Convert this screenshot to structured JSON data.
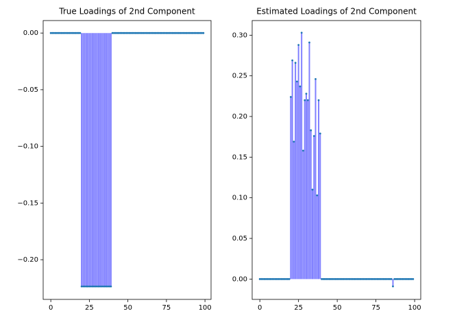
{
  "chart_data": [
    {
      "type": "stem",
      "title": "True Loadings of 2nd Component",
      "x": [
        0,
        1,
        2,
        3,
        4,
        5,
        6,
        7,
        8,
        9,
        10,
        11,
        12,
        13,
        14,
        15,
        16,
        17,
        18,
        19,
        20,
        21,
        22,
        23,
        24,
        25,
        26,
        27,
        28,
        29,
        30,
        31,
        32,
        33,
        34,
        35,
        36,
        37,
        38,
        39,
        40,
        41,
        42,
        43,
        44,
        45,
        46,
        47,
        48,
        49,
        50,
        51,
        52,
        53,
        54,
        55,
        56,
        57,
        58,
        59,
        60,
        61,
        62,
        63,
        64,
        65,
        66,
        67,
        68,
        69,
        70,
        71,
        72,
        73,
        74,
        75,
        76,
        77,
        78,
        79,
        80,
        81,
        82,
        83,
        84,
        85,
        86,
        87,
        88,
        89,
        90,
        91,
        92,
        93,
        94,
        95,
        96,
        97,
        98,
        99
      ],
      "values": [
        0,
        0,
        0,
        0,
        0,
        0,
        0,
        0,
        0,
        0,
        0,
        0,
        0,
        0,
        0,
        0,
        0,
        0,
        0,
        0,
        -0.2236,
        -0.2236,
        -0.2236,
        -0.2236,
        -0.2236,
        -0.2236,
        -0.2236,
        -0.2236,
        -0.2236,
        -0.2236,
        -0.2236,
        -0.2236,
        -0.2236,
        -0.2236,
        -0.2236,
        -0.2236,
        -0.2236,
        -0.2236,
        -0.2236,
        -0.2236,
        0,
        0,
        0,
        0,
        0,
        0,
        0,
        0,
        0,
        0,
        0,
        0,
        0,
        0,
        0,
        0,
        0,
        0,
        0,
        0,
        0,
        0,
        0,
        0,
        0,
        0,
        0,
        0,
        0,
        0,
        0,
        0,
        0,
        0,
        0,
        0,
        0,
        0,
        0,
        0,
        0,
        0,
        0,
        0,
        0,
        0,
        0,
        0,
        0,
        0,
        0,
        0,
        0,
        0,
        0,
        0,
        0,
        0,
        0,
        0
      ],
      "stem_color": "#8080ff",
      "marker_color": "#1f77b4",
      "xlim": [
        -4.95,
        103.95
      ],
      "xticks": [
        0,
        25,
        50,
        75,
        100
      ],
      "ylim": [
        -0.235,
        0.011
      ],
      "yticks": [
        {
          "value": 0,
          "label": "0.00"
        },
        {
          "value": -0.05,
          "label": "−0.05"
        },
        {
          "value": -0.1,
          "label": "−0.10"
        },
        {
          "value": -0.15,
          "label": "−0.15"
        },
        {
          "value": -0.2,
          "label": "−0.20"
        }
      ]
    },
    {
      "type": "stem",
      "title": "Estimated Loadings of 2nd Component",
      "x": [
        0,
        1,
        2,
        3,
        4,
        5,
        6,
        7,
        8,
        9,
        10,
        11,
        12,
        13,
        14,
        15,
        16,
        17,
        18,
        19,
        20,
        21,
        22,
        23,
        24,
        25,
        26,
        27,
        28,
        29,
        30,
        31,
        32,
        33,
        34,
        35,
        36,
        37,
        38,
        39,
        40,
        41,
        42,
        43,
        44,
        45,
        46,
        47,
        48,
        49,
        50,
        51,
        52,
        53,
        54,
        55,
        56,
        57,
        58,
        59,
        60,
        61,
        62,
        63,
        64,
        65,
        66,
        67,
        68,
        69,
        70,
        71,
        72,
        73,
        74,
        75,
        76,
        77,
        78,
        79,
        80,
        81,
        82,
        83,
        84,
        85,
        86,
        87,
        88,
        89,
        90,
        91,
        92,
        93,
        94,
        95,
        96,
        97,
        98,
        99
      ],
      "values": [
        0,
        0,
        0,
        0,
        0,
        0,
        0,
        0,
        0,
        0,
        0,
        0,
        0,
        0,
        0,
        0,
        0,
        0,
        0,
        0,
        0.224,
        0.269,
        0.169,
        0.266,
        0.243,
        0.288,
        0.237,
        0.303,
        0.158,
        0.22,
        0.228,
        0.22,
        0.291,
        0.183,
        0.11,
        0.176,
        0.246,
        0.103,
        0.22,
        0.179,
        0,
        0,
        0,
        0,
        0,
        0,
        0,
        0,
        0,
        0,
        0,
        0,
        0,
        0,
        0,
        0,
        0,
        0,
        0,
        0,
        0,
        0,
        0,
        0,
        0,
        0,
        0,
        0,
        0,
        0,
        0,
        0,
        0,
        0,
        0,
        0,
        0,
        0,
        0,
        0,
        0,
        0,
        0,
        0,
        0,
        0,
        -0.009,
        0,
        0,
        0,
        0,
        0,
        0,
        0,
        0,
        0,
        0,
        0,
        0,
        0
      ],
      "stem_color": "#8080ff",
      "marker_color": "#1f77b4",
      "xlim": [
        -4.95,
        103.95
      ],
      "xticks": [
        0,
        25,
        50,
        75,
        100
      ],
      "ylim": [
        -0.025,
        0.318
      ],
      "yticks": [
        {
          "value": 0,
          "label": "0.00"
        },
        {
          "value": 0.05,
          "label": "0.05"
        },
        {
          "value": 0.1,
          "label": "0.10"
        },
        {
          "value": 0.15,
          "label": "0.15"
        },
        {
          "value": 0.2,
          "label": "0.20"
        },
        {
          "value": 0.25,
          "label": "0.25"
        },
        {
          "value": 0.3,
          "label": "0.30"
        }
      ]
    }
  ]
}
